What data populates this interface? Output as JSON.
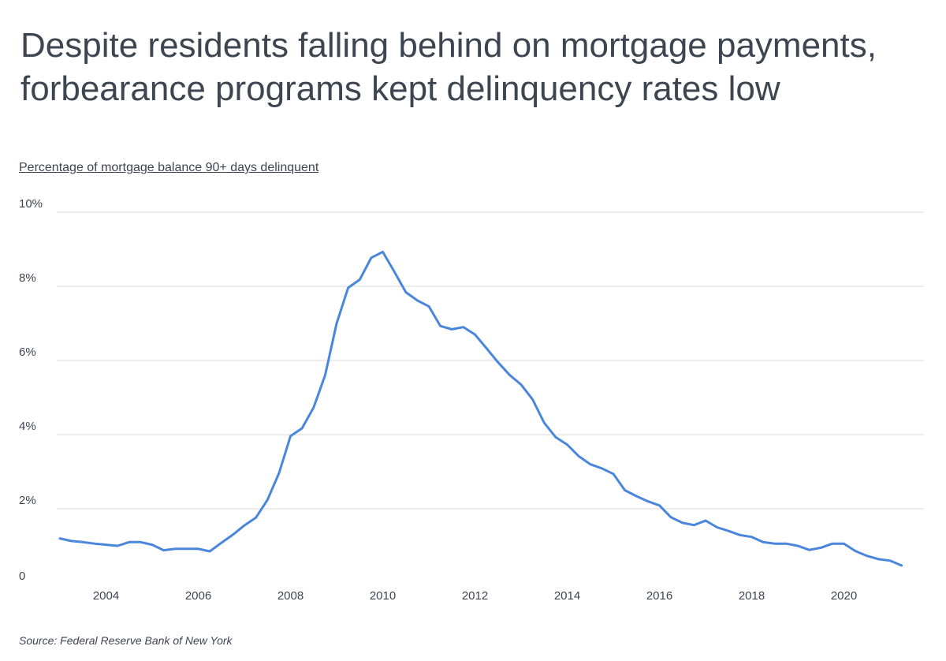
{
  "title": "Despite residents falling behind on mortgage payments, forbearance programs kept delinquency rates low",
  "subtitle": "Percentage of mortgage balance 90+ days delinquent",
  "source": "Source:  Federal Reserve Bank of New York",
  "colors": {
    "line": "#4a86dc",
    "grid": "#d9d9d9",
    "text": "#3d4551"
  },
  "chart_data": {
    "type": "line",
    "title": "Despite residents falling behind on mortgage payments, forbearance programs kept delinquency rates low",
    "ylabel": "Percentage of mortgage balance 90+ days delinquent",
    "xlabel": "",
    "ylim": [
      0,
      10
    ],
    "xlim": [
      2003,
      2021.25
    ],
    "y_ticks": [
      {
        "value": 0,
        "label": "0"
      },
      {
        "value": 2,
        "label": "2%"
      },
      {
        "value": 4,
        "label": "4%"
      },
      {
        "value": 6,
        "label": "6%"
      },
      {
        "value": 8,
        "label": "8%"
      },
      {
        "value": 10,
        "label": "10%"
      }
    ],
    "x_ticks": [
      {
        "value": 2004,
        "label": "2004"
      },
      {
        "value": 2006,
        "label": "2006"
      },
      {
        "value": 2008,
        "label": "2008"
      },
      {
        "value": 2010,
        "label": "2010"
      },
      {
        "value": 2012,
        "label": "2012"
      },
      {
        "value": 2014,
        "label": "2014"
      },
      {
        "value": 2016,
        "label": "2016"
      },
      {
        "value": 2018,
        "label": "2018"
      },
      {
        "value": 2020,
        "label": "2020"
      }
    ],
    "grid": true,
    "legend": "none",
    "series": [
      {
        "x": [
          2003.0,
          2003.25,
          2003.5,
          2003.75,
          2004.0,
          2004.25,
          2004.5,
          2004.75,
          2005.0,
          2005.25,
          2005.5,
          2005.75,
          2006.0,
          2006.25,
          2006.5,
          2006.75,
          2007.0,
          2007.25,
          2007.5,
          2007.75,
          2008.0,
          2008.25,
          2008.5,
          2008.75,
          2009.0,
          2009.25,
          2009.5,
          2009.75,
          2010.0,
          2010.25,
          2010.5,
          2010.75,
          2011.0,
          2011.25,
          2011.5,
          2011.75,
          2012.0,
          2012.25,
          2012.5,
          2012.75,
          2013.0,
          2013.25,
          2013.5,
          2013.75,
          2014.0,
          2014.25,
          2014.5,
          2014.75,
          2015.0,
          2015.25,
          2015.5,
          2015.75,
          2016.0,
          2016.25,
          2016.5,
          2016.75,
          2017.0,
          2017.25,
          2017.5,
          2017.75,
          2018.0,
          2018.25,
          2018.5,
          2018.75,
          2019.0,
          2019.25,
          2019.5,
          2019.75,
          2020.0,
          2020.25,
          2020.5,
          2020.75,
          2021.0,
          2021.25
        ],
        "values": [
          1.2,
          1.13,
          1.1,
          1.06,
          1.03,
          1.0,
          1.1,
          1.1,
          1.03,
          0.88,
          0.92,
          0.92,
          0.92,
          0.85,
          1.08,
          1.3,
          1.55,
          1.76,
          2.24,
          2.96,
          3.96,
          4.17,
          4.73,
          5.6,
          7.0,
          7.96,
          8.18,
          8.77,
          8.93,
          8.4,
          7.84,
          7.62,
          7.46,
          6.93,
          6.84,
          6.9,
          6.7,
          6.33,
          5.95,
          5.61,
          5.35,
          4.95,
          4.32,
          3.93,
          3.73,
          3.42,
          3.2,
          3.09,
          2.94,
          2.5,
          2.34,
          2.2,
          2.09,
          1.77,
          1.62,
          1.56,
          1.68,
          1.5,
          1.4,
          1.29,
          1.24,
          1.1,
          1.06,
          1.06,
          1.0,
          0.89,
          0.95,
          1.06,
          1.06,
          0.86,
          0.73,
          0.64,
          0.6,
          0.47
        ]
      }
    ]
  }
}
